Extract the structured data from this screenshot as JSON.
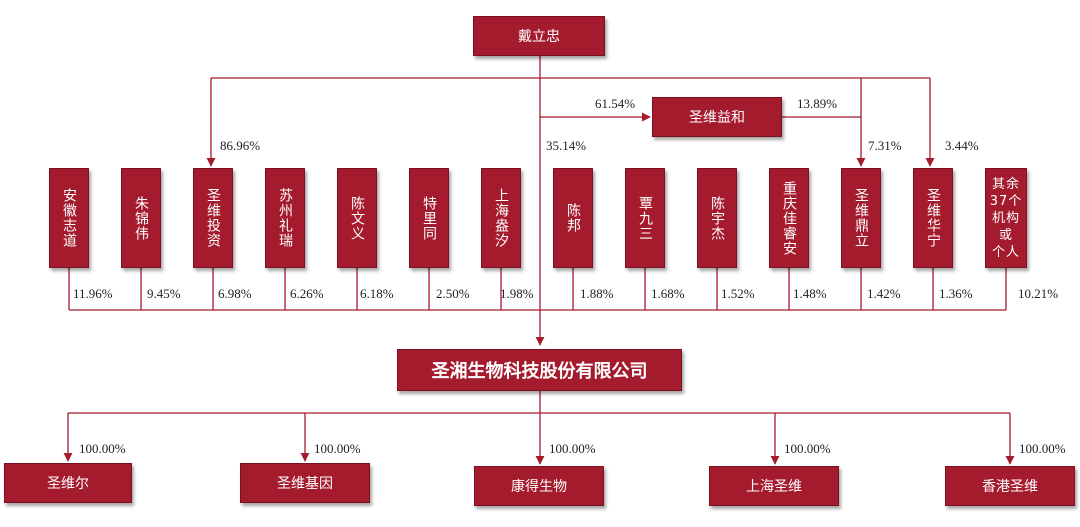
{
  "top": {
    "name": "戴立忠"
  },
  "platform": {
    "name": "圣维益和"
  },
  "company": {
    "name": "圣湘生物科技股份有限公司"
  },
  "labels": {
    "dai_to_yihe": "61.54%",
    "yihe_to_dingli": "13.89%",
    "dai_to_touzi": "86.96%",
    "dai_to_company": "35.14%",
    "dai_to_dingli": "7.31%",
    "dai_to_huaning": "3.44%"
  },
  "shareholders": [
    {
      "name": "安徽志道",
      "pct": "11.96%"
    },
    {
      "name": "朱锦伟",
      "pct": "9.45%"
    },
    {
      "name": "圣维投资",
      "pct": "6.98%"
    },
    {
      "name": "苏州礼瑞",
      "pct": "6.26%"
    },
    {
      "name": "陈文义",
      "pct": "6.18%"
    },
    {
      "name": "特里同",
      "pct": "2.50%"
    },
    {
      "name": "上海盎汐",
      "pct": "1.98%"
    },
    {
      "name": "陈邦",
      "pct": "1.88%"
    },
    {
      "name": "覃九三",
      "pct": "1.68%"
    },
    {
      "name": "陈宇杰",
      "pct": "1.52%"
    },
    {
      "name": "重庆佳睿安",
      "pct": "1.48%"
    },
    {
      "name": "圣维鼎立",
      "pct": "1.42%"
    },
    {
      "name": "圣维华宁",
      "pct": "1.36%"
    },
    {
      "name": "其余\n37个\n机构或\n个人",
      "pct": "10.21%"
    }
  ],
  "subsidiaries": [
    {
      "name": "圣维尔",
      "pct": "100.00%"
    },
    {
      "name": "圣维基因",
      "pct": "100.00%"
    },
    {
      "name": "康得生物",
      "pct": "100.00%"
    },
    {
      "name": "上海圣维",
      "pct": "100.00%"
    },
    {
      "name": "香港圣维",
      "pct": "100.00%"
    }
  ],
  "colors": {
    "box": "#a51b2e",
    "line": "#a51b2e"
  }
}
